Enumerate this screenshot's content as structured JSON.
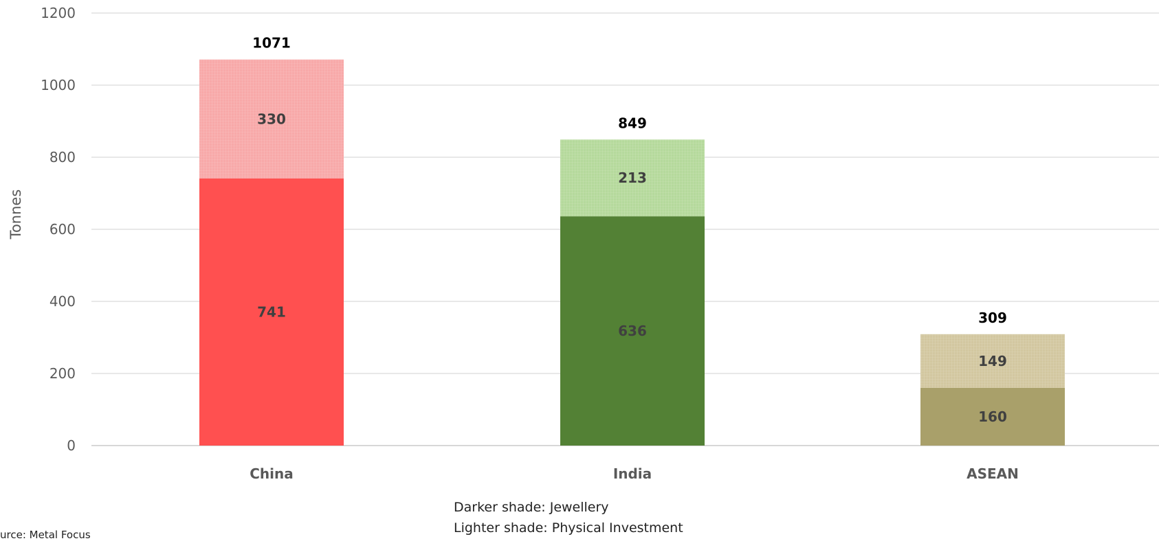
{
  "chart_data": {
    "type": "bar",
    "stacked": true,
    "categories": [
      "China",
      "India",
      "ASEAN"
    ],
    "series": [
      {
        "key": "jewellery",
        "values": [
          741,
          636,
          160
        ]
      },
      {
        "key": "investment",
        "values": [
          330,
          213,
          149
        ]
      }
    ],
    "totals": [
      1071,
      849,
      309
    ],
    "colors": {
      "jewellery": [
        "#FF5050",
        "#538135",
        "#A9A06A"
      ],
      "investment": [
        "#F8A9A9",
        "#B5D99C",
        "#D2C7A0"
      ]
    },
    "ylabel": "Tonnes",
    "ylim": [
      0,
      1200
    ],
    "yticks": [
      0,
      200,
      400,
      600,
      800,
      1000,
      1200
    ],
    "grid": true
  },
  "notes": {
    "line1": "Darker shade: Jewellery",
    "line2": "Lighter shade: Physical Investment"
  },
  "source": "urce: Metal Focus"
}
